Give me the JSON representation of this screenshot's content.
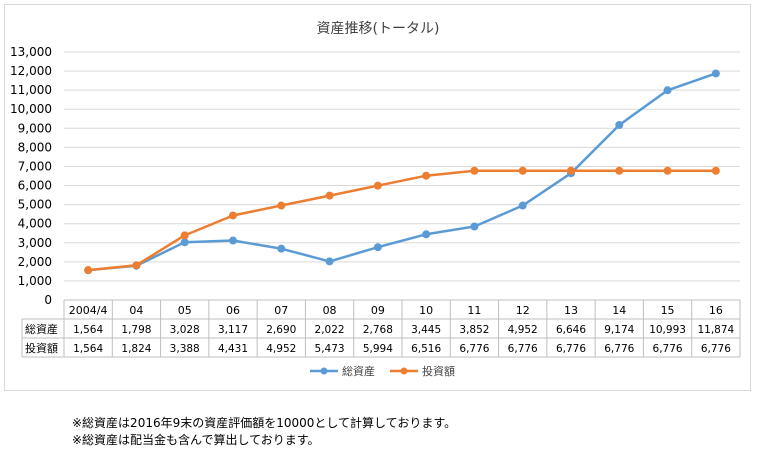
{
  "chart_data": {
    "type": "line",
    "title": "資産推移(トータル)",
    "categories": [
      "2004/4",
      "04",
      "05",
      "06",
      "07",
      "08",
      "09",
      "10",
      "11",
      "12",
      "13",
      "14",
      "15",
      "16"
    ],
    "ylim": [
      0,
      13000
    ],
    "yticks": [
      0,
      1000,
      2000,
      3000,
      4000,
      5000,
      6000,
      7000,
      8000,
      9000,
      10000,
      11000,
      12000,
      13000
    ],
    "ytick_labels": [
      "0",
      "1,000",
      "2,000",
      "3,000",
      "4,000",
      "5,000",
      "6,000",
      "7,000",
      "8,000",
      "9,000",
      "10,000",
      "11,000",
      "12,000",
      "13,000"
    ],
    "grid": true,
    "legend_position": "bottom",
    "series": [
      {
        "name": "総資産",
        "color": "#5b9bd5",
        "values": [
          1564,
          1798,
          3028,
          3117,
          2690,
          2022,
          2768,
          3445,
          3852,
          4952,
          6646,
          9174,
          10993,
          11874
        ],
        "labels": [
          "1,564",
          "1,798",
          "3,028",
          "3,117",
          "2,690",
          "2,022",
          "2,768",
          "3,445",
          "3,852",
          "4,952",
          "6,646",
          "9,174",
          "10,993",
          "11,874"
        ]
      },
      {
        "name": "投資額",
        "color": "#ed7d31",
        "values": [
          1564,
          1824,
          3388,
          4431,
          4952,
          5473,
          5994,
          6516,
          6776,
          6776,
          6776,
          6776,
          6776,
          6776
        ],
        "labels": [
          "1,564",
          "1,824",
          "3,388",
          "4,431",
          "4,952",
          "5,473",
          "5,994",
          "6,516",
          "6,776",
          "6,776",
          "6,776",
          "6,776",
          "6,776",
          "6,776"
        ]
      }
    ]
  },
  "notes": [
    "※総資産は2016年9末の資産評価額を10000として計算しております。",
    "※総資産は配当金も含んで算出しております。"
  ]
}
